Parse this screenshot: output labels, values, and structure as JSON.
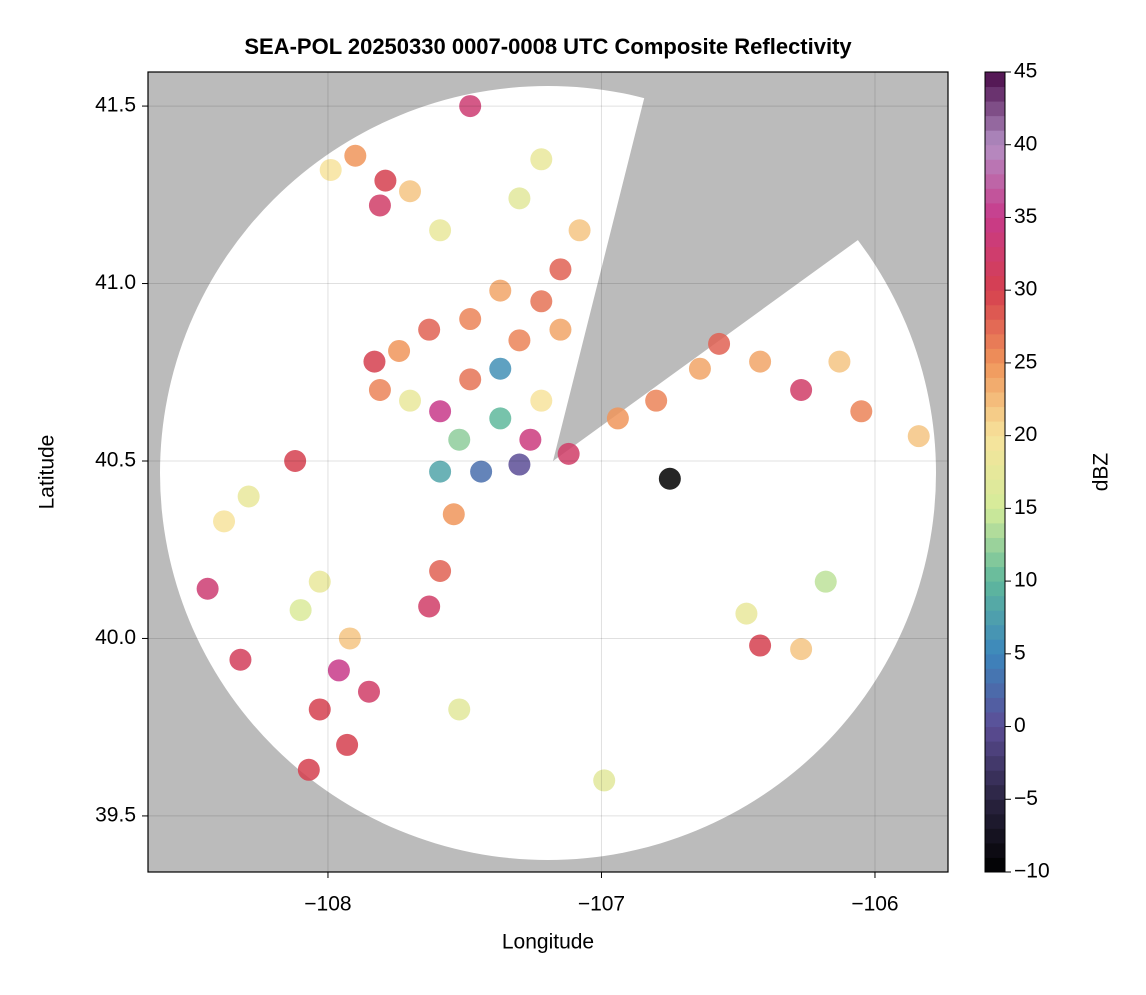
{
  "chart_data": {
    "type": "radar",
    "title": "SEA-POL 20250330 0007-0008 UTC Composite Reflectivity",
    "xlabel": "Longitude",
    "ylabel": "Latitude",
    "colorbar_label": "dBZ",
    "xlim": [
      -108.658,
      -105.733
    ],
    "ylim": [
      39.342,
      41.596
    ],
    "xticks": [
      {
        "value": -108,
        "label": "−108"
      },
      {
        "value": -107,
        "label": "−107"
      },
      {
        "value": -106,
        "label": "−106"
      }
    ],
    "yticks": [
      39.5,
      {
        "value": 40,
        "label": "40.0"
      },
      40.5,
      {
        "value": 41,
        "label": "41.0"
      },
      41.5
    ],
    "clim": [
      -10,
      45
    ],
    "cticks": [
      {
        "value": -10,
        "label": "−10"
      },
      {
        "value": -5,
        "label": "−5"
      },
      0,
      5,
      10,
      15,
      20,
      25,
      30,
      35,
      40,
      45
    ],
    "colormap": [
      "#000000",
      "#2a2440",
      "#5c4d96",
      "#3c86bd",
      "#5fb89c",
      "#d4ec9a",
      "#f7e39c",
      "#f0955a",
      "#d53f4f",
      "#c83a8a",
      "#b48fc4",
      "#4a0c4a"
    ],
    "grid": true,
    "x": [
      -107.9,
      -107.79,
      -107.81,
      -107.99,
      -107.7,
      -107.59,
      -107.48,
      -107.22,
      -107.3,
      -107.08,
      -107.15,
      -107.22,
      -107.37,
      -107.48,
      -107.63,
      -107.74,
      -107.83,
      -107.81,
      -107.7,
      -107.59,
      -107.48,
      -107.37,
      -107.3,
      -107.15,
      -107.22,
      -107.37,
      -107.52,
      -107.26,
      -107.44,
      -107.3,
      -107.59,
      -107.54,
      -107.59,
      -107.63,
      -108.12,
      -108.29,
      -108.38,
      -108.44,
      -108.03,
      -108.1,
      -107.96,
      -107.92,
      -108.03,
      -107.85,
      -107.93,
      -108.07,
      -108.32,
      -107.52,
      -106.99,
      -106.42,
      -106.27,
      -106.47,
      -106.94,
      -106.8,
      -106.64,
      -106.57,
      -106.42,
      -106.27,
      -106.13,
      -106.05,
      -105.84,
      -107.12,
      -106.75,
      -106.18
    ],
    "y": [
      41.36,
      41.29,
      41.22,
      41.32,
      41.26,
      41.15,
      41.5,
      41.35,
      41.24,
      41.15,
      41.04,
      40.95,
      40.98,
      40.9,
      40.87,
      40.81,
      40.78,
      40.7,
      40.67,
      40.64,
      40.73,
      40.76,
      40.84,
      40.87,
      40.67,
      40.62,
      40.56,
      40.56,
      40.47,
      40.49,
      40.47,
      40.35,
      40.19,
      40.09,
      40.5,
      40.4,
      40.33,
      40.14,
      40.16,
      40.08,
      39.91,
      40.0,
      39.8,
      39.85,
      39.7,
      39.63,
      39.94,
      39.8,
      39.6,
      39.98,
      39.97,
      40.07,
      40.62,
      40.67,
      40.76,
      40.83,
      40.78,
      40.7,
      40.78,
      40.64,
      40.57,
      40.52,
      40.45,
      40.16
    ],
    "values": [
      25,
      30,
      32,
      20,
      22,
      18,
      33,
      18,
      17,
      22,
      28,
      27,
      24,
      26,
      28,
      25,
      30,
      26,
      18,
      35,
      27,
      6,
      26,
      24,
      20,
      10,
      12,
      34,
      3,
      0,
      8,
      25,
      28,
      32,
      30,
      18,
      20,
      33,
      18,
      16,
      35,
      22,
      30,
      32,
      30,
      30,
      31,
      17,
      17,
      30,
      22,
      18,
      25,
      26,
      24,
      28,
      24,
      32,
      22,
      26,
      22,
      32,
      -10,
      14
    ]
  }
}
